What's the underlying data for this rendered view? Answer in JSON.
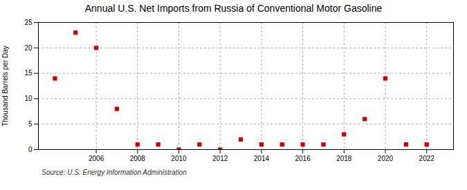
{
  "chart_data": {
    "type": "scatter",
    "title": "Annual U.S. Net Imports from Russia of Conventional Motor Gasoline",
    "ylabel": "Thousand Barrels per Day",
    "source": "Source: U.S. Energy Information Administration",
    "x": [
      2004,
      2005,
      2006,
      2007,
      2008,
      2009,
      2010,
      2011,
      2012,
      2013,
      2014,
      2015,
      2016,
      2017,
      2018,
      2019,
      2020,
      2021,
      2022
    ],
    "values": [
      14,
      23,
      20,
      8,
      1,
      1,
      0,
      1,
      0,
      2,
      1,
      1,
      1,
      1,
      3,
      6,
      14,
      1,
      1
    ],
    "xlim": [
      2003.2,
      2023.3
    ],
    "ylim": [
      0,
      25
    ],
    "xticks": [
      2006,
      2008,
      2010,
      2012,
      2014,
      2016,
      2018,
      2020,
      2022
    ],
    "yticks": [
      0,
      5,
      10,
      15,
      20,
      25
    ],
    "color": "#cc0000",
    "marker": "square",
    "grid": true
  }
}
